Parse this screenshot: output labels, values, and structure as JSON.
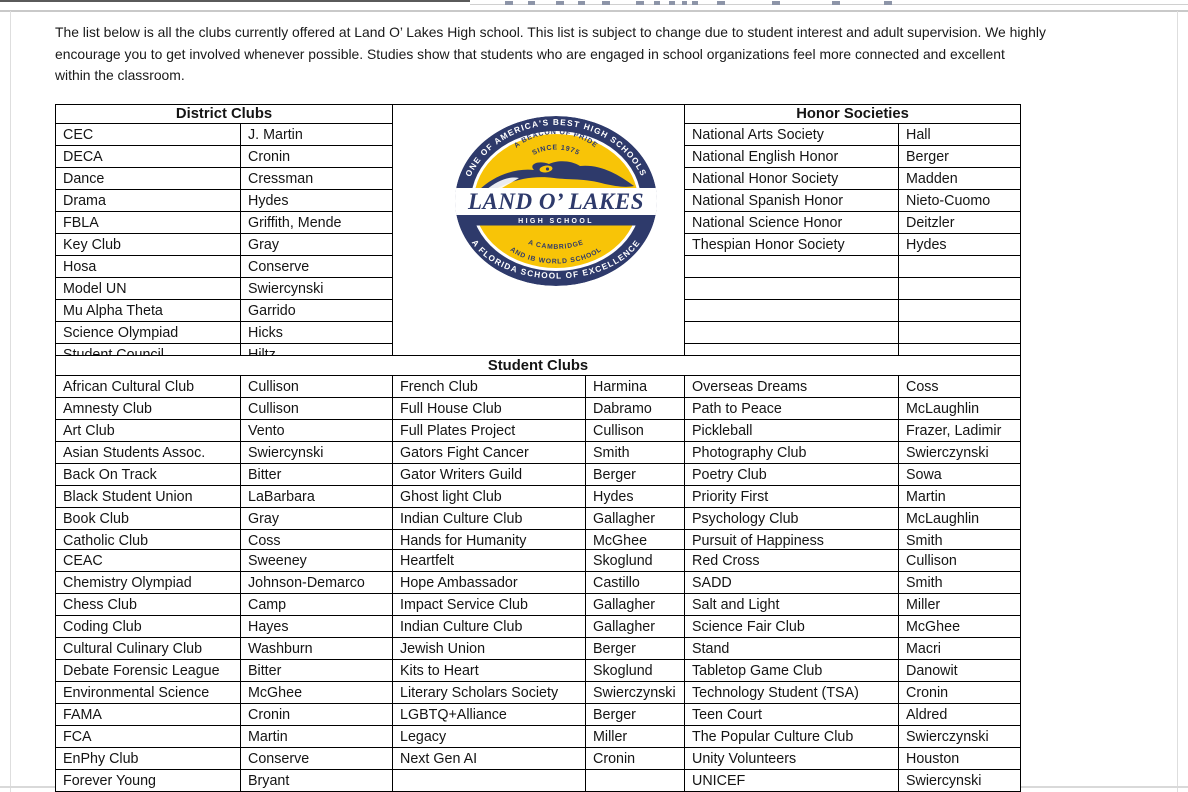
{
  "intro": {
    "lines": [
      "The list below is all the clubs currently offered at Land O’ Lakes High school. This list is subject to change due to student interest and adult supervision. We highly",
      "encourage you to get involved whenever possible. Studies show that students who are engaged in school organizations feel more connected and excellent",
      "within the classroom."
    ]
  },
  "tables": {
    "district": {
      "title": "District Clubs",
      "rows": [
        [
          "CEC",
          "J. Martin"
        ],
        [
          "DECA",
          "Cronin"
        ],
        [
          "Dance",
          "Cressman"
        ],
        [
          "Drama",
          "Hydes"
        ],
        [
          "FBLA",
          "Griffith, Mende"
        ],
        [
          "Key Club",
          "Gray"
        ],
        [
          "Hosa",
          "Conserve"
        ],
        [
          "Model UN",
          "Swiercynski"
        ],
        [
          "Mu Alpha Theta",
          "Garrido"
        ],
        [
          "Science Olympiad",
          "Hicks"
        ],
        [
          "Student Council",
          "Hiltz"
        ]
      ]
    },
    "honor": {
      "title": "Honor Societies",
      "rows": [
        [
          "National Arts Society",
          "Hall"
        ],
        [
          "National English Honor",
          "Berger"
        ],
        [
          "National Honor Society",
          "Madden"
        ],
        [
          "National Spanish Honor",
          "Nieto-Cuomo"
        ],
        [
          "National Science Honor",
          "Deitzler"
        ],
        [
          "Thespian Honor Society",
          "Hydes"
        ],
        [
          "",
          ""
        ],
        [
          "",
          ""
        ],
        [
          "",
          ""
        ],
        [
          "",
          ""
        ],
        [
          "",
          ""
        ]
      ]
    },
    "student": {
      "title": "Student Clubs",
      "block1": [
        [
          "African Cultural Club",
          "Cullison",
          "French Club",
          "Harmina",
          "Overseas Dreams",
          "Coss"
        ],
        [
          "Amnesty Club",
          "Cullison",
          "Full House Club",
          "Dabramo",
          "Path to Peace",
          "McLaughlin"
        ],
        [
          "Art Club",
          "Vento",
          "Full Plates Project",
          "Cullison",
          "Pickleball",
          "Frazer, Ladimir"
        ],
        [
          "Asian Students Assoc.",
          "Swiercynski",
          "Gators Fight Cancer",
          "Smith",
          "Photography Club",
          "Swierczynski"
        ],
        [
          "Back On Track",
          "Bitter",
          "Gator Writers Guild",
          "Berger",
          "Poetry Club",
          "Sowa"
        ],
        [
          "Black Student Union",
          "LaBarbara",
          "Ghost light Club",
          "Hydes",
          "Priority First",
          "Martin"
        ],
        [
          "Book Club",
          "Gray",
          "Indian Culture Club",
          "Gallagher",
          "Psychology Club",
          "McLaughlin"
        ],
        [
          "Catholic Club",
          "Coss",
          "Hands for Humanity",
          "McGhee",
          "Pursuit of Happiness",
          "Smith"
        ]
      ],
      "block2": [
        [
          "CEAC",
          "Sweeney",
          "Heartfelt",
          "Skoglund",
          "Red Cross",
          "Cullison"
        ],
        [
          "Chemistry Olympiad",
          "Johnson-Demarco",
          "Hope Ambassador",
          "Castillo",
          "SADD",
          "Smith"
        ],
        [
          "Chess Club",
          "Camp",
          "Impact Service Club",
          "Gallagher",
          "Salt and Light",
          "Miller"
        ],
        [
          "Coding Club",
          "Hayes",
          "Indian Culture Club",
          "Gallagher",
          "Science Fair Club",
          "McGhee"
        ],
        [
          "Cultural Culinary Club",
          "Washburn",
          "Jewish Union",
          "Berger",
          "Stand",
          "Macri"
        ],
        [
          "Debate Forensic League",
          "Bitter",
          "Kits to Heart",
          "Skoglund",
          "Tabletop Game Club",
          "Danowit"
        ],
        [
          "Environmental Science",
          "McGhee",
          "Literary Scholars Society",
          "Swierczynski",
          "Technology Student (TSA)",
          "Cronin"
        ],
        [
          "FAMA",
          "Cronin",
          "LGBTQ+Alliance",
          "Berger",
          "Teen Court",
          "Aldred"
        ],
        [
          "FCA",
          "Martin",
          "Legacy",
          "Miller",
          "The Popular Culture Club",
          "Swierczynski"
        ],
        [
          "EnPhy Club",
          "Conserve",
          "Next Gen AI",
          "Cronin",
          "Unity Volunteers",
          "Houston"
        ],
        [
          "Forever Young",
          "Bryant",
          "",
          "",
          "UNICEF",
          "Swiercynski"
        ]
      ]
    }
  },
  "logo": {
    "outer_top": "ONE OF AMERICA'S BEST HIGH SCHOOLS",
    "outer_bottom": "A FLORIDA SCHOOL OF EXCELLENCE",
    "inner_top_1": "A BEACON OF PRIDE",
    "inner_top_2": "SINCE 1975",
    "name": "LAND O’ LAKES",
    "subname": "HIGH SCHOOL",
    "inner_bottom_1": "A CAMBRIDGE",
    "inner_bottom_2": "AND IB WORLD SCHOOL"
  },
  "colors": {
    "navy": "#2e3a6b",
    "gold": "#f8c407"
  }
}
